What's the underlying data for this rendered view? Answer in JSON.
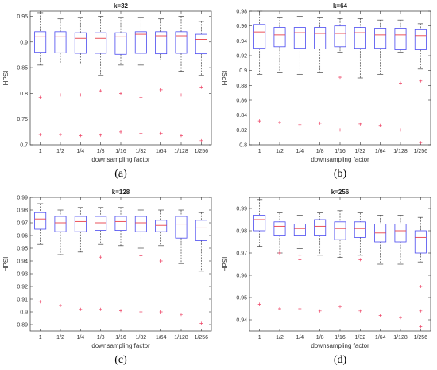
{
  "chart_data": [
    {
      "type": "box",
      "title": "k=32",
      "xlabel": "downsampling factor",
      "ylabel": "HPSI",
      "caption": "(a)",
      "categories": [
        "1",
        "1/2",
        "1/4",
        "1/8",
        "1/16",
        "1/32",
        "1/64",
        "1/128",
        "1/256"
      ],
      "ylim": [
        0.7,
        0.96
      ],
      "yticks": [
        0.7,
        0.75,
        0.8,
        0.85,
        0.9,
        0.95
      ],
      "ytick_labels": [
        "0.7",
        "0.75",
        "0.8",
        "0.85",
        "0.9",
        "0.95"
      ],
      "boxes": [
        {
          "low": 0.855,
          "q1": 0.88,
          "median": 0.91,
          "q3": 0.92,
          "high": 0.957
        },
        {
          "low": 0.857,
          "q1": 0.879,
          "median": 0.91,
          "q3": 0.92,
          "high": 0.945
        },
        {
          "low": 0.857,
          "q1": 0.878,
          "median": 0.907,
          "q3": 0.918,
          "high": 0.948
        },
        {
          "low": 0.835,
          "q1": 0.878,
          "median": 0.907,
          "q3": 0.918,
          "high": 0.95
        },
        {
          "low": 0.855,
          "q1": 0.876,
          "median": 0.91,
          "q3": 0.918,
          "high": 0.948
        },
        {
          "low": 0.855,
          "q1": 0.878,
          "median": 0.915,
          "q3": 0.92,
          "high": 0.948
        },
        {
          "low": 0.865,
          "q1": 0.877,
          "median": 0.912,
          "q3": 0.92,
          "high": 0.945
        },
        {
          "low": 0.843,
          "q1": 0.878,
          "median": 0.912,
          "q3": 0.92,
          "high": 0.95
        },
        {
          "low": 0.835,
          "q1": 0.877,
          "median": 0.905,
          "q3": 0.915,
          "high": 0.94
        }
      ],
      "outliers": [
        [
          0.792,
          0.72
        ],
        [
          0.797,
          0.72
        ],
        [
          0.797,
          0.718
        ],
        [
          0.805,
          0.719
        ],
        [
          0.8,
          0.725
        ],
        [
          0.792,
          0.722
        ],
        [
          0.807,
          0.722
        ],
        [
          0.797,
          0.718
        ],
        [
          0.812,
          0.708
        ]
      ]
    },
    {
      "type": "box",
      "title": "k=64",
      "xlabel": "downsampling factor",
      "ylabel": "HPSI",
      "caption": "(b)",
      "categories": [
        "1",
        "1/2",
        "1/4",
        "1/8",
        "1/16",
        "1/32",
        "1/64",
        "1/128",
        "1/256"
      ],
      "ylim": [
        0.8,
        0.98
      ],
      "yticks": [
        0.8,
        0.82,
        0.84,
        0.86,
        0.88,
        0.9,
        0.92,
        0.94,
        0.96,
        0.98
      ],
      "ytick_labels": [
        "0.8",
        "0.82",
        "0.84",
        "0.86",
        "0.88",
        "0.9",
        "0.92",
        "0.94",
        "0.96",
        "0.98"
      ],
      "boxes": [
        {
          "low": 0.895,
          "q1": 0.93,
          "median": 0.952,
          "q3": 0.962,
          "high": 0.98
        },
        {
          "low": 0.897,
          "q1": 0.932,
          "median": 0.948,
          "q3": 0.958,
          "high": 0.972
        },
        {
          "low": 0.895,
          "q1": 0.93,
          "median": 0.951,
          "q3": 0.958,
          "high": 0.973
        },
        {
          "low": 0.897,
          "q1": 0.929,
          "median": 0.95,
          "q3": 0.958,
          "high": 0.972
        },
        {
          "low": 0.925,
          "q1": 0.932,
          "median": 0.95,
          "q3": 0.96,
          "high": 0.97
        },
        {
          "low": 0.89,
          "q1": 0.93,
          "median": 0.951,
          "q3": 0.958,
          "high": 0.97
        },
        {
          "low": 0.895,
          "q1": 0.93,
          "median": 0.948,
          "q3": 0.957,
          "high": 0.968
        },
        {
          "low": 0.925,
          "q1": 0.928,
          "median": 0.948,
          "q3": 0.957,
          "high": 0.968
        },
        {
          "low": 0.902,
          "q1": 0.928,
          "median": 0.947,
          "q3": 0.955,
          "high": 0.963
        }
      ],
      "outliers": [
        [
          0.832
        ],
        [
          0.83
        ],
        [
          0.827
        ],
        [
          0.829
        ],
        [
          0.891,
          0.82
        ],
        [
          0.828
        ],
        [
          0.826
        ],
        [
          0.883,
          0.82
        ],
        [
          0.886,
          0.803
        ]
      ]
    },
    {
      "type": "box",
      "title": "k=128",
      "xlabel": "downsampling factor",
      "ylabel": "HPSI",
      "caption": "(c)",
      "categories": [
        "1",
        "1/2",
        "1/4",
        "1/8",
        "1/16",
        "1/32",
        "1/64",
        "1/128",
        "1/256"
      ],
      "ylim": [
        0.885,
        0.99
      ],
      "yticks": [
        0.89,
        0.9,
        0.91,
        0.92,
        0.93,
        0.94,
        0.95,
        0.96,
        0.97,
        0.98,
        0.99
      ],
      "ytick_labels": [
        "0.89",
        "0.9",
        "0.91",
        "0.92",
        "0.93",
        "0.94",
        "0.95",
        "0.96",
        "0.97",
        "0.98",
        "0.99"
      ],
      "boxes": [
        {
          "low": 0.953,
          "q1": 0.965,
          "median": 0.973,
          "q3": 0.978,
          "high": 0.985
        },
        {
          "low": 0.945,
          "q1": 0.963,
          "median": 0.97,
          "q3": 0.975,
          "high": 0.98
        },
        {
          "low": 0.947,
          "q1": 0.963,
          "median": 0.971,
          "q3": 0.975,
          "high": 0.982
        },
        {
          "low": 0.953,
          "q1": 0.964,
          "median": 0.97,
          "q3": 0.975,
          "high": 0.982
        },
        {
          "low": 0.952,
          "q1": 0.964,
          "median": 0.971,
          "q3": 0.975,
          "high": 0.982
        },
        {
          "low": 0.95,
          "q1": 0.963,
          "median": 0.97,
          "q3": 0.975,
          "high": 0.98
        },
        {
          "low": 0.952,
          "q1": 0.963,
          "median": 0.968,
          "q3": 0.972,
          "high": 0.98
        },
        {
          "low": 0.938,
          "q1": 0.958,
          "median": 0.969,
          "q3": 0.975,
          "high": 0.98
        },
        {
          "low": 0.932,
          "q1": 0.956,
          "median": 0.966,
          "q3": 0.972,
          "high": 0.978
        }
      ],
      "outliers": [
        [
          0.908
        ],
        [
          0.905
        ],
        [
          0.902
        ],
        [
          0.943,
          0.902
        ],
        [
          0.901
        ],
        [
          0.944,
          0.9
        ],
        [
          0.94,
          0.9
        ],
        [
          0.898
        ],
        [
          0.891
        ]
      ]
    },
    {
      "type": "box",
      "title": "k=256",
      "xlabel": "downsampling factor",
      "ylabel": "HPSI",
      "caption": "(d)",
      "categories": [
        "1",
        "1/2",
        "1/4",
        "1/8",
        "1/16",
        "1/32",
        "1/64",
        "1/128",
        "1/256"
      ],
      "ylim": [
        0.935,
        0.995
      ],
      "yticks": [
        0.94,
        0.95,
        0.96,
        0.97,
        0.98,
        0.99
      ],
      "ytick_labels": [
        "0.94",
        "0.95",
        "0.96",
        "0.97",
        "0.98",
        "0.99"
      ],
      "boxes": [
        {
          "low": 0.973,
          "q1": 0.98,
          "median": 0.985,
          "q3": 0.987,
          "high": 0.994
        },
        {
          "low": 0.97,
          "q1": 0.978,
          "median": 0.982,
          "q3": 0.984,
          "high": 0.988
        },
        {
          "low": 0.972,
          "q1": 0.978,
          "median": 0.981,
          "q3": 0.983,
          "high": 0.987
        },
        {
          "low": 0.969,
          "q1": 0.978,
          "median": 0.982,
          "q3": 0.985,
          "high": 0.988
        },
        {
          "low": 0.968,
          "q1": 0.976,
          "median": 0.981,
          "q3": 0.984,
          "high": 0.989
        },
        {
          "low": 0.969,
          "q1": 0.977,
          "median": 0.981,
          "q3": 0.984,
          "high": 0.988
        },
        {
          "low": 0.965,
          "q1": 0.975,
          "median": 0.979,
          "q3": 0.983,
          "high": 0.987
        },
        {
          "low": 0.965,
          "q1": 0.975,
          "median": 0.98,
          "q3": 0.983,
          "high": 0.987
        },
        {
          "low": 0.966,
          "q1": 0.97,
          "median": 0.977,
          "q3": 0.98,
          "high": 0.986
        }
      ],
      "outliers": [
        [
          0.947
        ],
        [
          0.97,
          0.945
        ],
        [
          0.969,
          0.967,
          0.945
        ],
        [
          0.944
        ],
        [
          0.946
        ],
        [
          0.967,
          0.944
        ],
        [
          0.942
        ],
        [
          0.941
        ],
        [
          0.955,
          0.944,
          0.937
        ]
      ]
    }
  ],
  "colors": {
    "box": "#4a4af0",
    "median": "#e8404a",
    "whisker": "#444444",
    "outlier": "#ee4466",
    "axis": "#333333"
  }
}
